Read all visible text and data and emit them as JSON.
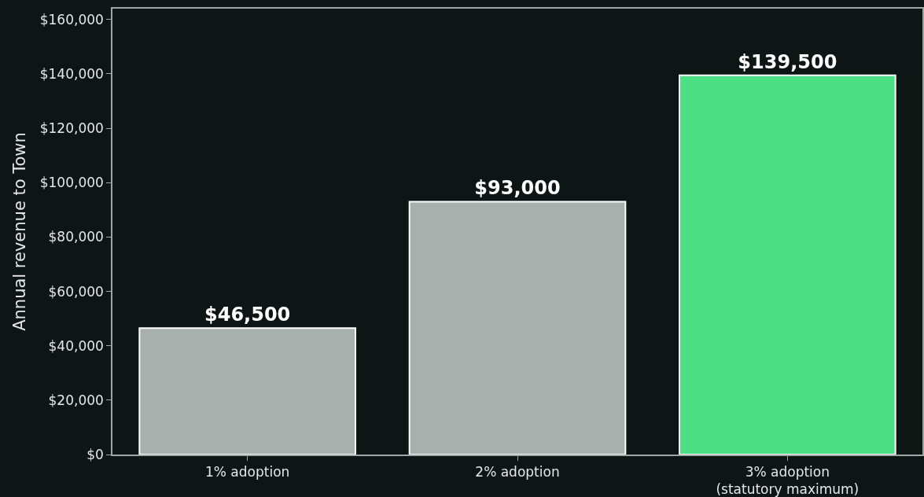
{
  "chart_data": {
    "type": "bar",
    "ylabel": "Annual revenue to Town",
    "categories": [
      "1% adoption",
      "2% adoption",
      "3% adoption\n(statutory maximum)"
    ],
    "values": [
      46500,
      93000,
      139500
    ],
    "colors": [
      "#a8b0ad",
      "#a8b0ad",
      "#4cdf83"
    ],
    "value_labels": [
      "$46,500",
      "$93,000",
      "$139,500"
    ],
    "ylim": [
      0,
      164000
    ],
    "yticks": [
      {
        "value": 0,
        "label": "$0"
      },
      {
        "value": 20000,
        "label": "$20,000"
      },
      {
        "value": 40000,
        "label": "$40,000"
      },
      {
        "value": 60000,
        "label": "$60,000"
      },
      {
        "value": 80000,
        "label": "$80,000"
      },
      {
        "value": 100000,
        "label": "$100,000"
      },
      {
        "value": 120000,
        "label": "$120,000"
      },
      {
        "value": 140000,
        "label": "$140,000"
      },
      {
        "value": 160000,
        "label": "$160,000"
      }
    ],
    "grid": false
  }
}
